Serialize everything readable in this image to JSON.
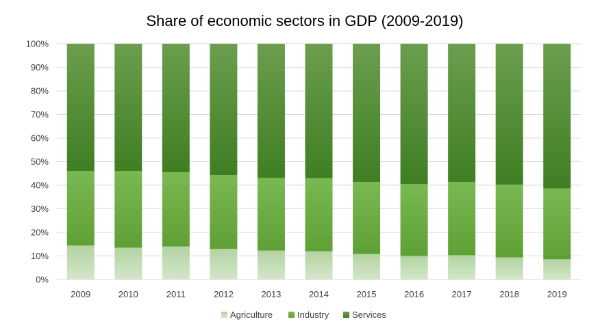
{
  "chart_data": {
    "type": "bar",
    "stacked": true,
    "title": "Share of economic sectors in GDP (2009-2019)",
    "xlabel": "",
    "ylabel": "",
    "categories": [
      "2009",
      "2010",
      "2011",
      "2012",
      "2013",
      "2014",
      "2015",
      "2016",
      "2017",
      "2018",
      "2019"
    ],
    "series": [
      {
        "name": "Agriculture",
        "color": "#b7d7a8",
        "values": [
          14.4,
          13.5,
          14.0,
          13.0,
          12.3,
          12.0,
          10.8,
          10.0,
          10.3,
          9.4,
          8.6
        ]
      },
      {
        "name": "Industry",
        "color": "#6aaa3f",
        "values": [
          31.6,
          32.5,
          31.5,
          31.3,
          30.8,
          31.0,
          30.6,
          30.5,
          31.1,
          30.8,
          30.1
        ]
      },
      {
        "name": "Services",
        "color": "#4f8c2f",
        "values": [
          54.0,
          54.0,
          54.5,
          55.7,
          56.9,
          57.0,
          58.6,
          59.5,
          58.6,
          59.8,
          61.3
        ]
      }
    ],
    "ylim": [
      0,
      100
    ],
    "yticks": [
      "0%",
      "10%",
      "20%",
      "30%",
      "40%",
      "50%",
      "60%",
      "70%",
      "80%",
      "90%",
      "100%"
    ],
    "grid": true,
    "legend_position": "bottom"
  }
}
